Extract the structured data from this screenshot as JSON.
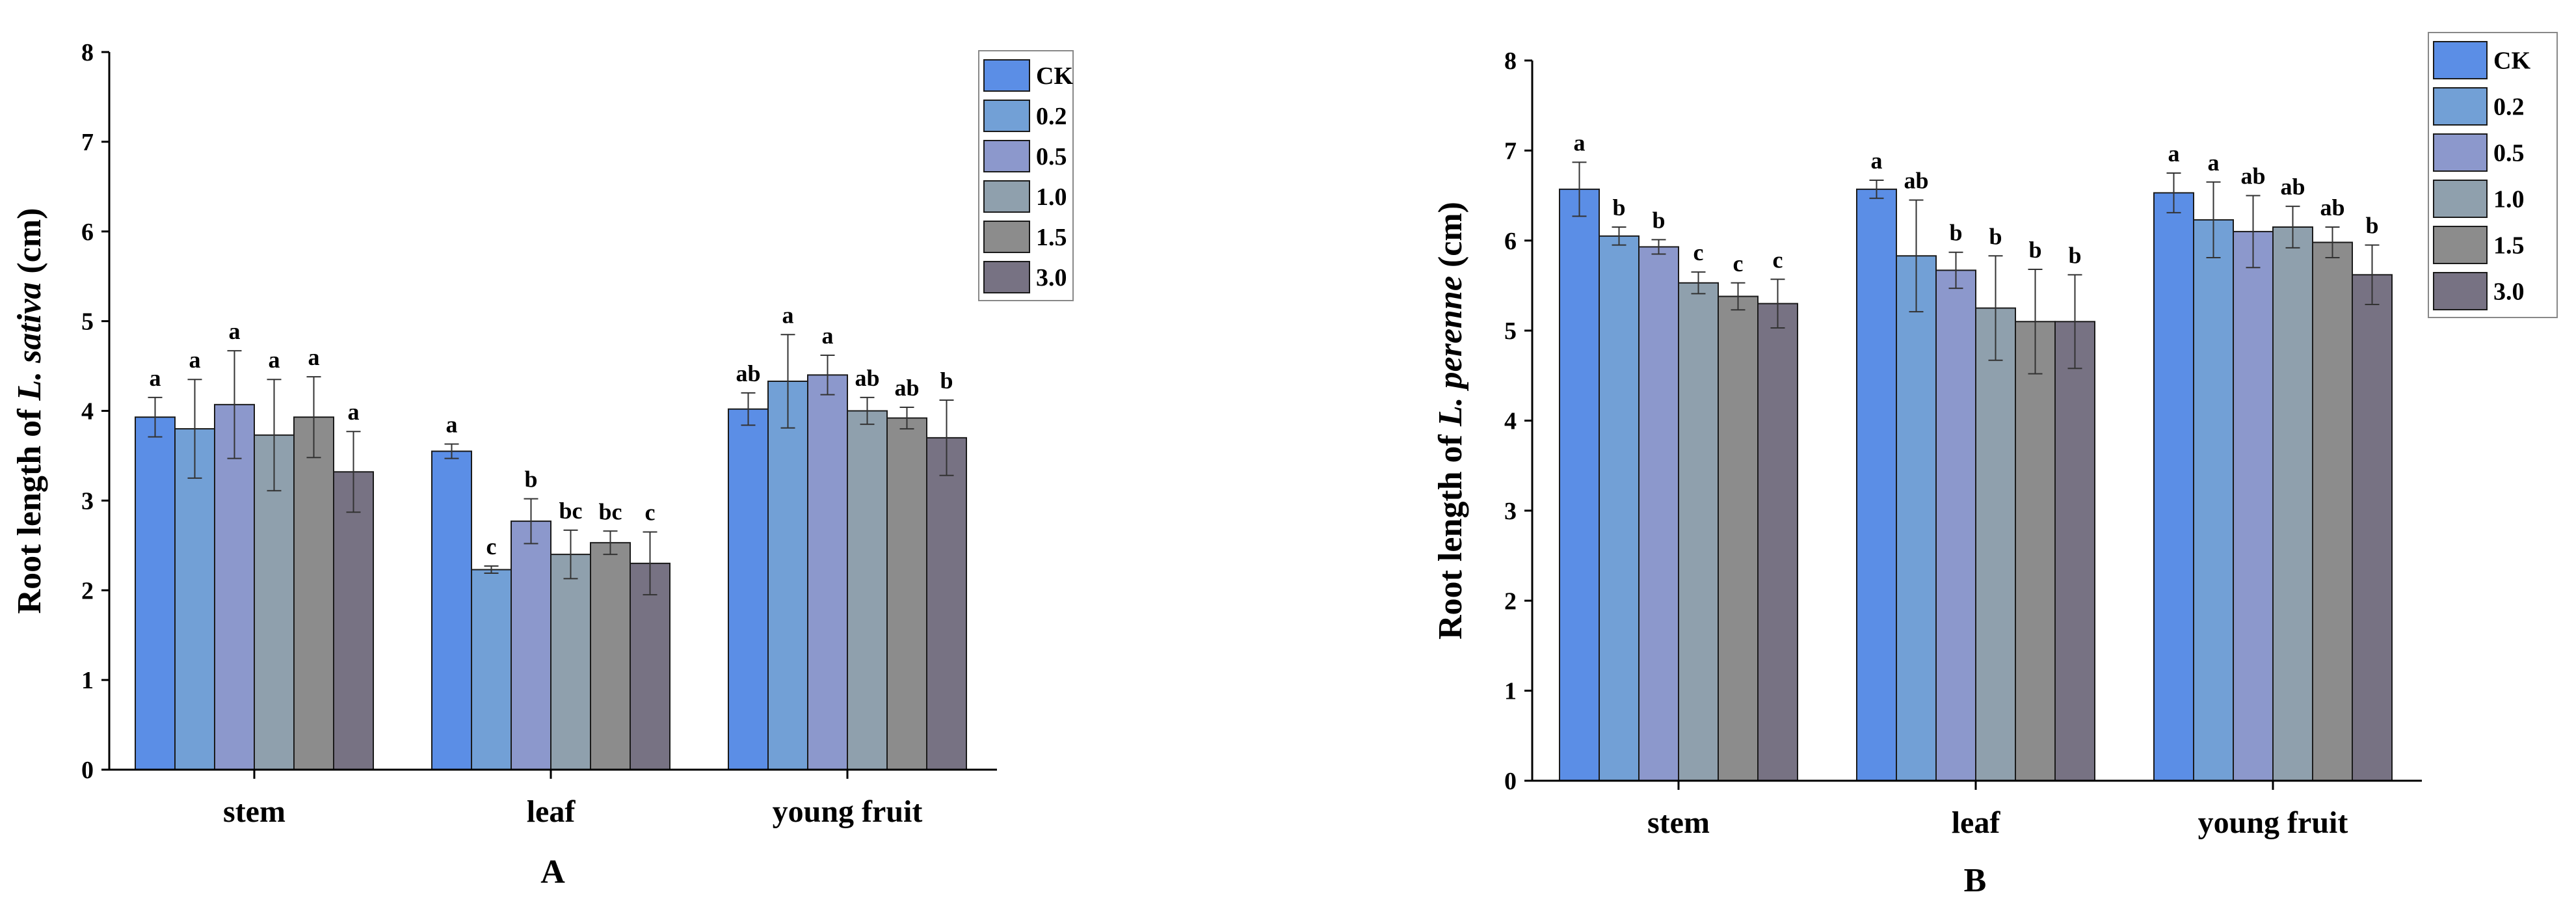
{
  "chart_data": [
    {
      "type": "bar",
      "panel_label": "A",
      "title": "",
      "ylabel_prefix": "Root length of ",
      "ylabel_species": "L. sativa",
      "ylabel_suffix": " (cm)",
      "xlabel": "",
      "ylim": [
        0,
        8
      ],
      "yticks": [
        "0",
        "1",
        "2",
        "3",
        "4",
        "5",
        "6",
        "7",
        "8"
      ],
      "categories": [
        "stem",
        "leaf",
        "young fruit"
      ],
      "legend_position": "top-right",
      "series": [
        {
          "name": "CK",
          "color": "#5b8ee6",
          "values": [
            3.93,
            3.55,
            4.02
          ],
          "errors": [
            0.22,
            0.08,
            0.18
          ],
          "labels": [
            "a",
            "a",
            "ab"
          ]
        },
        {
          "name": "0.2",
          "color": "#72a0d6",
          "values": [
            3.8,
            2.23,
            4.33
          ],
          "errors": [
            0.55,
            0.04,
            0.52
          ],
          "labels": [
            "a",
            "c",
            "a"
          ]
        },
        {
          "name": "0.5",
          "color": "#8c98cc",
          "values": [
            4.07,
            2.77,
            4.4
          ],
          "errors": [
            0.6,
            0.25,
            0.22
          ],
          "labels": [
            "a",
            "b",
            "a"
          ]
        },
        {
          "name": "1.0",
          "color": "#8fa0ad",
          "values": [
            3.73,
            2.4,
            4.0
          ],
          "errors": [
            0.62,
            0.27,
            0.15
          ],
          "labels": [
            "a",
            "bc",
            "ab"
          ]
        },
        {
          "name": "1.5",
          "color": "#8c8c8c",
          "values": [
            3.93,
            2.53,
            3.92
          ],
          "errors": [
            0.45,
            0.13,
            0.12
          ],
          "labels": [
            "a",
            "bc",
            "ab"
          ]
        },
        {
          "name": "3.0",
          "color": "#777283",
          "values": [
            3.32,
            2.3,
            3.7
          ],
          "errors": [
            0.45,
            0.35,
            0.42
          ],
          "labels": [
            "a",
            "c",
            "b"
          ]
        }
      ]
    },
    {
      "type": "bar",
      "panel_label": "B",
      "title": "",
      "ylabel_prefix": "Root length of ",
      "ylabel_species": "L. perenne",
      "ylabel_suffix": " (cm)",
      "xlabel": "",
      "ylim": [
        0,
        8
      ],
      "yticks": [
        "0",
        "1",
        "2",
        "3",
        "4",
        "5",
        "6",
        "7",
        "8"
      ],
      "categories": [
        "stem",
        "leaf",
        "young fruit"
      ],
      "legend_position": "top-right",
      "series": [
        {
          "name": "CK",
          "color": "#5b8ee6",
          "values": [
            6.57,
            6.57,
            6.53
          ],
          "errors": [
            0.3,
            0.1,
            0.22
          ],
          "labels": [
            "a",
            "a",
            "a"
          ]
        },
        {
          "name": "0.2",
          "color": "#72a0d6",
          "values": [
            6.05,
            5.83,
            6.23
          ],
          "errors": [
            0.1,
            0.62,
            0.42
          ],
          "labels": [
            "b",
            "ab",
            "a"
          ]
        },
        {
          "name": "0.5",
          "color": "#8c98cc",
          "values": [
            5.93,
            5.67,
            6.1
          ],
          "errors": [
            0.08,
            0.2,
            0.4
          ],
          "labels": [
            "b",
            "b",
            "ab"
          ]
        },
        {
          "name": "1.0",
          "color": "#8fa0ad",
          "values": [
            5.53,
            5.25,
            6.15
          ],
          "errors": [
            0.12,
            0.58,
            0.23
          ],
          "labels": [
            "c",
            "b",
            "ab"
          ]
        },
        {
          "name": "1.5",
          "color": "#8c8c8c",
          "values": [
            5.38,
            5.1,
            5.98
          ],
          "errors": [
            0.15,
            0.58,
            0.17
          ],
          "labels": [
            "c",
            "b",
            "ab"
          ]
        },
        {
          "name": "3.0",
          "color": "#777283",
          "values": [
            5.3,
            5.1,
            5.62
          ],
          "errors": [
            0.27,
            0.52,
            0.33
          ],
          "labels": [
            "c",
            "b",
            "b"
          ]
        }
      ]
    }
  ]
}
